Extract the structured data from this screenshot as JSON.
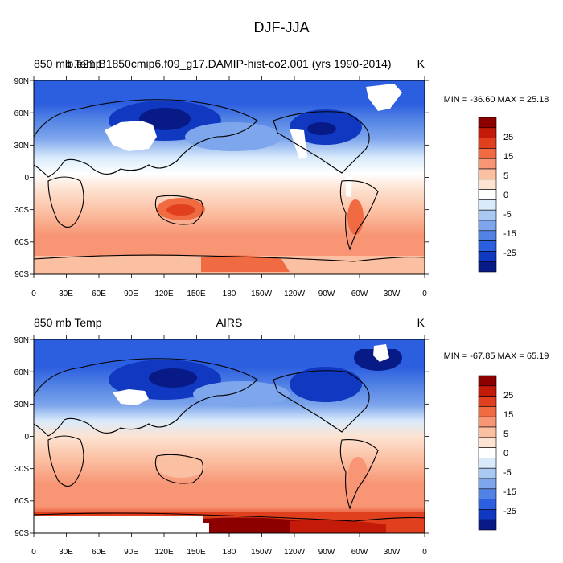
{
  "figure": {
    "title": "DJF-JJA"
  },
  "colorbar_levels": [
    "25",
    "15",
    "5",
    "0",
    "-5",
    "-15",
    "-25"
  ],
  "panels": [
    {
      "left_title": "850 mb Temp",
      "center_title": "b.e21.B1850cmip6.f09_g17.DAMIP-hist-co2.001 (yrs 1990-2014)",
      "units": "K",
      "stats": "MIN = -36.60 MAX =  25.18"
    },
    {
      "left_title": "850 mb Temp",
      "center_title": "AIRS",
      "units": "K",
      "stats": "MIN = -67.85 MAX =  65.19"
    }
  ],
  "axes": {
    "lat_labels": [
      "90N",
      "60N",
      "30N",
      "0",
      "30S",
      "60S",
      "90S"
    ],
    "lon_labels": [
      "0",
      "30E",
      "60E",
      "90E",
      "120E",
      "150E",
      "180",
      "150W",
      "120W",
      "90W",
      "60W",
      "30W",
      "0"
    ]
  },
  "colors": {
    "scale": [
      "#8c0000",
      "#c41a0a",
      "#e0401e",
      "#f06a42",
      "#f79574",
      "#fbbfa2",
      "#fde3d2",
      "#ffffff",
      "#d9ebfb",
      "#a9c8f2",
      "#7ea6ec",
      "#5283e4",
      "#2c5ee0",
      "#1038c0",
      "#081a86"
    ]
  }
}
